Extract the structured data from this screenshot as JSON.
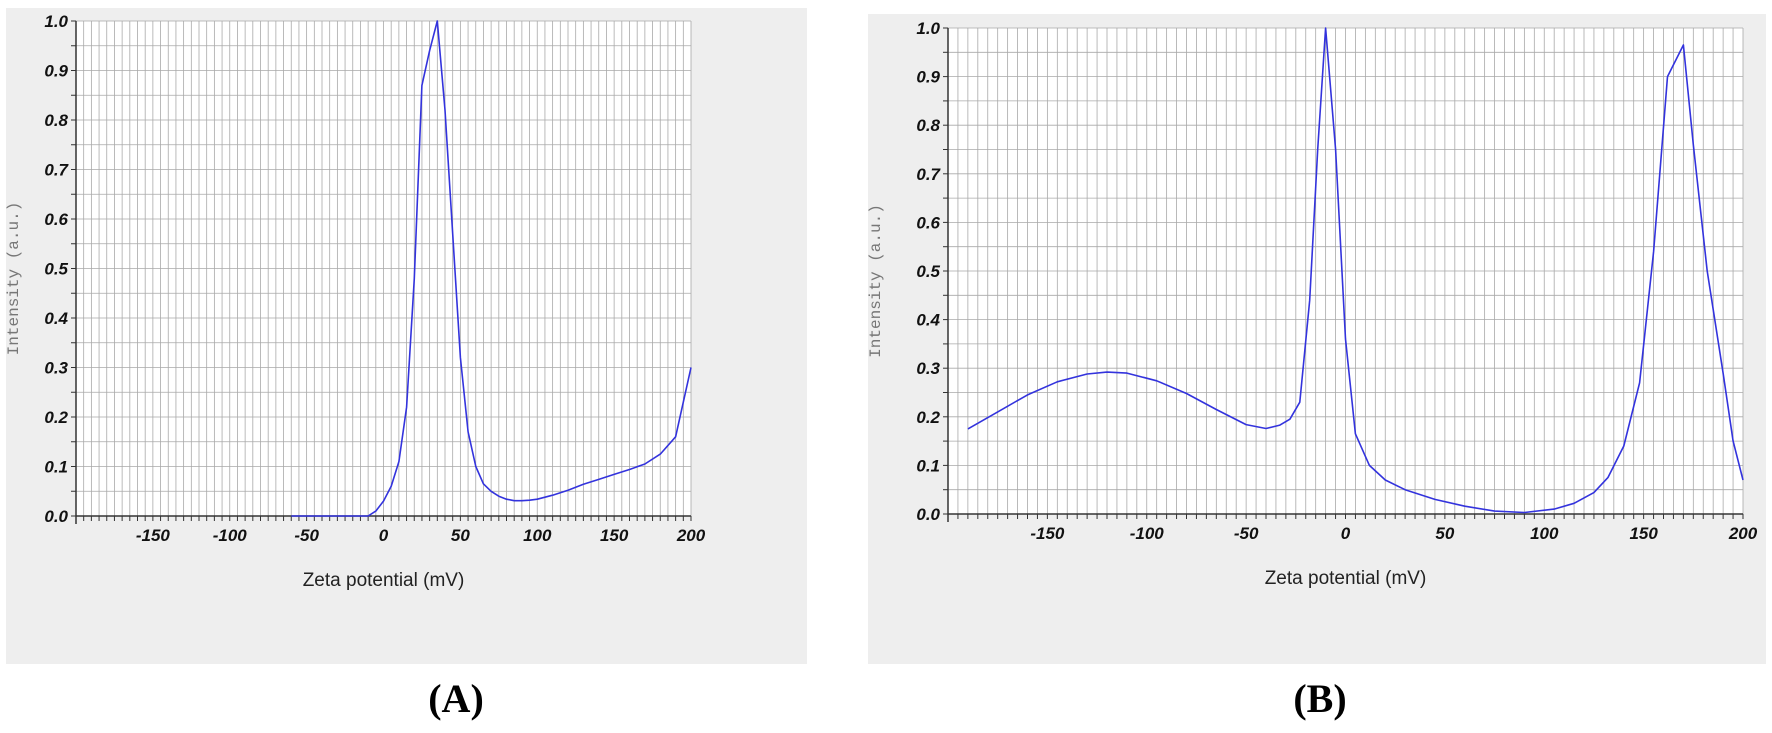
{
  "colors": {
    "panel_background": "#eeeeee",
    "plot_background": "#ffffff",
    "grid": "#a9a9a9",
    "axis": "#333333",
    "series": "#3333dd",
    "tick_text": "#111111",
    "ylabel_text": "#777777"
  },
  "panels": [
    {
      "label": "(A)",
      "chart_data": {
        "type": "line",
        "xlabel": "Zeta potential (mV)",
        "ylabel": "Intensity (a.u.)",
        "xlim": [
          -200,
          200
        ],
        "ylim": [
          0,
          1.0
        ],
        "xticks": [
          -150,
          -100,
          -50,
          0,
          50,
          100,
          150,
          200
        ],
        "xtick_labels": [
          "-150",
          "-100",
          "-50",
          "0",
          "50",
          "100",
          "150",
          "200"
        ],
        "yticks": [
          0,
          0.1,
          0.2,
          0.3,
          0.4,
          0.5,
          0.6,
          0.7,
          0.8,
          0.9,
          1.0
        ],
        "ytick_labels": [
          "0.0",
          "0.1",
          "0.2",
          "0.3",
          "0.4",
          "0.5",
          "0.6",
          "0.7",
          "0.8",
          "0.9",
          "1.0"
        ],
        "grid": true,
        "legend": "none",
        "series": [
          {
            "x": [
              -60,
              -30,
              -10,
              -5,
              0,
              5,
              10,
              15,
              20,
              25,
              30,
              35,
              40,
              45,
              50,
              55,
              60,
              65,
              70,
              75,
              80,
              85,
              90,
              95,
              100,
              110,
              120,
              130,
              140,
              150,
              160,
              170,
              180,
              190,
              200
            ],
            "y": [
              0.0,
              0.0,
              0.0,
              0.01,
              0.03,
              0.06,
              0.11,
              0.22,
              0.48,
              0.87,
              0.94,
              1.0,
              0.82,
              0.57,
              0.32,
              0.17,
              0.1,
              0.065,
              0.05,
              0.04,
              0.034,
              0.031,
              0.031,
              0.032,
              0.034,
              0.042,
              0.052,
              0.064,
              0.074,
              0.084,
              0.094,
              0.105,
              0.125,
              0.16,
              0.3
            ]
          }
        ]
      }
    },
    {
      "label": "(B)",
      "chart_data": {
        "type": "line",
        "xlabel": "Zeta potential (mV)",
        "ylabel": "Intensity (a.u.)",
        "xlim": [
          -200,
          200
        ],
        "ylim": [
          0,
          1.0
        ],
        "xticks": [
          -150,
          -100,
          -50,
          0,
          50,
          100,
          150,
          200
        ],
        "xtick_labels": [
          "-150",
          "-100",
          "-50",
          "0",
          "50",
          "100",
          "150",
          "200"
        ],
        "yticks": [
          0,
          0.1,
          0.2,
          0.3,
          0.4,
          0.5,
          0.6,
          0.7,
          0.8,
          0.9,
          1.0
        ],
        "ytick_labels": [
          "0.0",
          "0.1",
          "0.2",
          "0.3",
          "0.4",
          "0.5",
          "0.6",
          "0.7",
          "0.8",
          "0.9",
          "1.0"
        ],
        "grid": true,
        "legend": "none",
        "series": [
          {
            "x": [
              -190,
              -175,
              -160,
              -145,
              -130,
              -120,
              -110,
              -95,
              -80,
              -65,
              -50,
              -40,
              -33,
              -28,
              -23,
              -18,
              -14,
              -10,
              -5,
              0,
              5,
              12,
              20,
              30,
              45,
              60,
              75,
              90,
              105,
              115,
              125,
              132,
              140,
              148,
              155,
              162,
              170,
              175,
              182,
              190,
              195,
              200
            ],
            "y": [
              0.175,
              0.21,
              0.245,
              0.272,
              0.288,
              0.292,
              0.29,
              0.274,
              0.248,
              0.215,
              0.184,
              0.176,
              0.183,
              0.195,
              0.23,
              0.44,
              0.75,
              1.0,
              0.75,
              0.36,
              0.165,
              0.1,
              0.07,
              0.05,
              0.03,
              0.016,
              0.006,
              0.003,
              0.01,
              0.022,
              0.044,
              0.075,
              0.14,
              0.27,
              0.54,
              0.9,
              0.965,
              0.76,
              0.5,
              0.29,
              0.15,
              0.07
            ]
          }
        ]
      }
    }
  ]
}
